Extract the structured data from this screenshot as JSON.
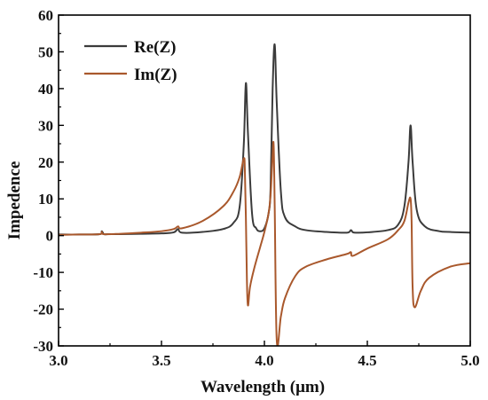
{
  "chart_data": {
    "type": "line",
    "xlabel": "Wavelength (μm)",
    "ylabel": "Impedence",
    "xlim": [
      3.0,
      5.0
    ],
    "ylim": [
      -30,
      60
    ],
    "x_ticks": [
      3.0,
      3.5,
      4.0,
      4.5,
      5.0
    ],
    "x_tick_labels": [
      "3.0",
      "3.5",
      "4.0",
      "4.5",
      "5.0"
    ],
    "y_ticks": [
      -30,
      -20,
      -10,
      0,
      10,
      20,
      30,
      40,
      50,
      60
    ],
    "y_tick_labels": [
      "-30",
      "-20",
      "-10",
      "0",
      "10",
      "20",
      "30",
      "40",
      "50",
      "60"
    ],
    "grid": false,
    "legend_position": "top-left",
    "series": [
      {
        "name": "Re(Z)",
        "color": "#3b3b3b",
        "x": [
          3.0,
          3.1,
          3.2,
          3.21,
          3.22,
          3.24,
          3.3,
          3.4,
          3.5,
          3.56,
          3.58,
          3.6,
          3.7,
          3.8,
          3.85,
          3.88,
          3.9,
          3.91,
          3.92,
          3.94,
          3.96,
          3.98,
          4.0,
          4.02,
          4.03,
          4.04,
          4.05,
          4.06,
          4.08,
          4.1,
          4.15,
          4.2,
          4.3,
          4.4,
          4.42,
          4.43,
          4.45,
          4.5,
          4.6,
          4.65,
          4.68,
          4.7,
          4.71,
          4.72,
          4.74,
          4.78,
          4.85,
          4.9,
          5.0
        ],
        "y": [
          0.3,
          0.3,
          0.4,
          1.2,
          0.4,
          0.4,
          0.4,
          0.5,
          0.6,
          0.9,
          1.8,
          0.8,
          1.0,
          1.8,
          3.5,
          8.0,
          25.0,
          41.5,
          28.0,
          6.0,
          2.0,
          1.2,
          2.0,
          6.0,
          13.0,
          40.0,
          52.0,
          36.0,
          12.0,
          5.0,
          2.5,
          1.5,
          1.0,
          0.8,
          1.5,
          0.9,
          0.8,
          0.9,
          1.5,
          3.0,
          8.0,
          20.0,
          30.0,
          20.0,
          7.0,
          2.5,
          1.2,
          1.0,
          0.8
        ]
      },
      {
        "name": "Im(Z)",
        "color": "#a9582c",
        "x": [
          3.0,
          3.1,
          3.2,
          3.21,
          3.22,
          3.3,
          3.4,
          3.5,
          3.56,
          3.58,
          3.6,
          3.7,
          3.8,
          3.85,
          3.88,
          3.9,
          3.905,
          3.91,
          3.915,
          3.92,
          3.93,
          3.95,
          3.98,
          4.0,
          4.02,
          4.03,
          4.04,
          4.045,
          4.05,
          4.06,
          4.08,
          4.1,
          4.15,
          4.2,
          4.3,
          4.4,
          4.42,
          4.43,
          4.5,
          4.6,
          4.65,
          4.68,
          4.7,
          4.71,
          4.715,
          4.72,
          4.73,
          4.76,
          4.8,
          4.9,
          5.0
        ],
        "y": [
          0.2,
          0.3,
          0.4,
          1.0,
          0.4,
          0.5,
          0.8,
          1.2,
          1.8,
          2.5,
          2.0,
          4.0,
          8.0,
          12.0,
          16.0,
          21.0,
          18.0,
          5.0,
          -12.0,
          -19.0,
          -14.0,
          -9.0,
          -3.0,
          1.0,
          6.0,
          11.0,
          22.0,
          24.5,
          8.0,
          -28.5,
          -22.0,
          -17.0,
          -11.0,
          -8.5,
          -6.5,
          -5.0,
          -4.5,
          -5.5,
          -3.5,
          -1.0,
          1.5,
          4.0,
          9.0,
          10.0,
          4.0,
          -14.0,
          -19.5,
          -15.0,
          -11.5,
          -8.5,
          -7.5
        ]
      }
    ]
  }
}
